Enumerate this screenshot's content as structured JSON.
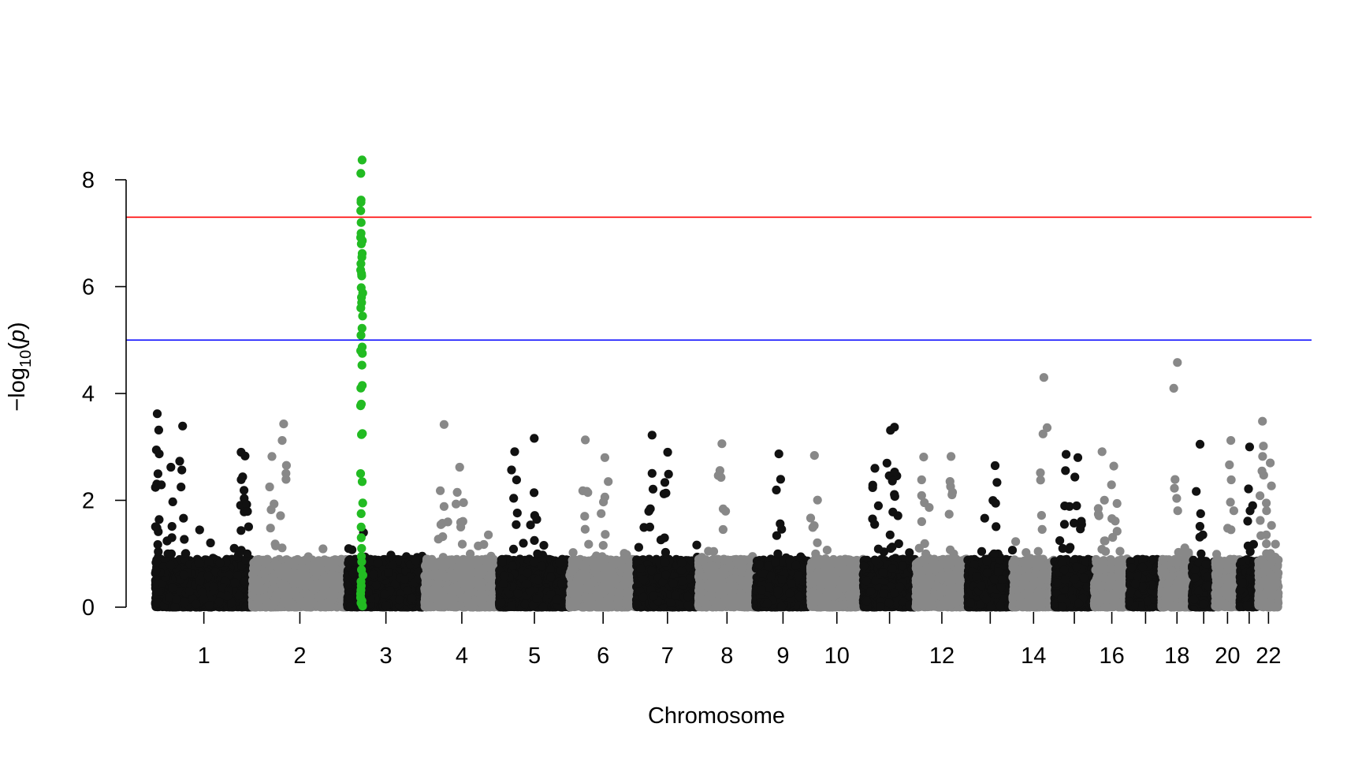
{
  "chart_data": {
    "type": "scatter",
    "subtype": "manhattan",
    "xlabel": "Chromosome",
    "ylabel_prefix": "−log",
    "ylabel_sub": "10",
    "ylabel_arg": "p",
    "ylim": [
      0,
      8.6
    ],
    "yticks": [
      "0",
      "2",
      "4",
      "6",
      "8"
    ],
    "colors": {
      "odd": "#111111",
      "even": "#888888",
      "highlight": "#22bb22"
    },
    "thresholds": [
      {
        "value": 7.3,
        "color": "#ff0000"
      },
      {
        "value": 5.0,
        "color": "#0000ff"
      }
    ],
    "chromosomes": [
      {
        "n": 1,
        "label": "1",
        "start": 0,
        "length": 249
      },
      {
        "n": 2,
        "label": "2",
        "start": 249,
        "length": 243
      },
      {
        "n": 3,
        "label": "3",
        "start": 492,
        "length": 198
      },
      {
        "n": 4,
        "label": "4",
        "start": 690,
        "length": 191
      },
      {
        "n": 5,
        "label": "5",
        "start": 881,
        "length": 181
      },
      {
        "n": 6,
        "label": "6",
        "start": 1062,
        "length": 171
      },
      {
        "n": 7,
        "label": "7",
        "start": 1233,
        "length": 159
      },
      {
        "n": 8,
        "label": "8",
        "start": 1392,
        "length": 146
      },
      {
        "n": 9,
        "label": "9",
        "start": 1538,
        "length": 141
      },
      {
        "n": 10,
        "label": "10",
        "start": 1679,
        "length": 135
      },
      {
        "n": 11,
        "label": "",
        "start": 1814,
        "length": 135
      },
      {
        "n": 12,
        "label": "12",
        "start": 1949,
        "length": 133
      },
      {
        "n": 13,
        "label": "",
        "start": 2082,
        "length": 115
      },
      {
        "n": 14,
        "label": "14",
        "start": 2197,
        "length": 107
      },
      {
        "n": 15,
        "label": "",
        "start": 2304,
        "length": 102
      },
      {
        "n": 16,
        "label": "16",
        "start": 2406,
        "length": 90
      },
      {
        "n": 17,
        "label": "",
        "start": 2496,
        "length": 83
      },
      {
        "n": 18,
        "label": "18",
        "start": 2579,
        "length": 78
      },
      {
        "n": 19,
        "label": "",
        "start": 2657,
        "length": 59
      },
      {
        "n": 20,
        "label": "20",
        "start": 2716,
        "length": 63
      },
      {
        "n": 21,
        "label": "",
        "start": 2779,
        "length": 48
      },
      {
        "n": 22,
        "label": "22",
        "start": 2827,
        "length": 51
      }
    ],
    "peaks": [
      {
        "chr": 1,
        "pos": 5,
        "y": 3.62
      },
      {
        "chr": 1,
        "pos": 10,
        "y": 2.87
      },
      {
        "chr": 1,
        "pos": 70,
        "y": 3.39
      },
      {
        "chr": 1,
        "pos": 40,
        "y": 2.62
      },
      {
        "chr": 1,
        "pos": 220,
        "y": 2.9
      },
      {
        "chr": 1,
        "pos": 230,
        "y": 2.83
      },
      {
        "chr": 2,
        "pos": 80,
        "y": 3.43
      },
      {
        "chr": 2,
        "pos": 50,
        "y": 2.82
      },
      {
        "chr": 4,
        "pos": 50,
        "y": 3.42
      },
      {
        "chr": 4,
        "pos": 90,
        "y": 2.62
      },
      {
        "chr": 5,
        "pos": 40,
        "y": 2.91
      },
      {
        "chr": 5,
        "pos": 90,
        "y": 3.16
      },
      {
        "chr": 6,
        "pos": 40,
        "y": 3.13
      },
      {
        "chr": 6,
        "pos": 90,
        "y": 2.8
      },
      {
        "chr": 7,
        "pos": 40,
        "y": 3.22
      },
      {
        "chr": 7,
        "pos": 80,
        "y": 2.9
      },
      {
        "chr": 8,
        "pos": 60,
        "y": 3.06
      },
      {
        "chr": 9,
        "pos": 60,
        "y": 2.87
      },
      {
        "chr": 10,
        "pos": 10,
        "y": 2.84
      },
      {
        "chr": 11,
        "pos": 70,
        "y": 3.31
      },
      {
        "chr": 11,
        "pos": 80,
        "y": 3.37
      },
      {
        "chr": 11,
        "pos": 30,
        "y": 2.6
      },
      {
        "chr": 12,
        "pos": 20,
        "y": 2.81
      },
      {
        "chr": 12,
        "pos": 90,
        "y": 2.82
      },
      {
        "chr": 13,
        "pos": 70,
        "y": 2.65
      },
      {
        "chr": 14,
        "pos": 80,
        "y": 4.3
      },
      {
        "chr": 15,
        "pos": 30,
        "y": 2.86
      },
      {
        "chr": 15,
        "pos": 60,
        "y": 2.8
      },
      {
        "chr": 16,
        "pos": 20,
        "y": 2.91
      },
      {
        "chr": 16,
        "pos": 50,
        "y": 2.64
      },
      {
        "chr": 18,
        "pos": 40,
        "y": 4.58
      },
      {
        "chr": 19,
        "pos": 20,
        "y": 3.05
      },
      {
        "chr": 20,
        "pos": 40,
        "y": 3.12
      },
      {
        "chr": 21,
        "pos": 25,
        "y": 3.0
      },
      {
        "chr": 22,
        "pos": 10,
        "y": 3.48
      },
      {
        "chr": 22,
        "pos": 30,
        "y": 2.7
      }
    ],
    "highlight_snps": {
      "chr": 3,
      "pos": 37,
      "values": [
        8.37,
        8.12,
        7.62,
        7.58,
        7.42,
        7.2,
        7.0,
        6.92,
        6.86,
        6.8,
        6.62,
        6.55,
        6.43,
        6.31,
        6.24,
        6.2,
        5.98,
        5.88,
        5.8,
        5.7,
        5.6,
        5.45,
        5.22,
        5.09,
        4.87,
        4.8,
        4.75,
        4.53,
        4.15,
        4.1,
        3.8,
        3.77,
        3.25,
        3.23,
        2.5,
        2.35,
        1.95,
        1.75,
        1.5,
        1.3,
        1.1,
        0.95,
        0.85,
        0.7,
        0.6,
        0.48,
        0.4,
        0.32,
        0.25,
        0.18,
        0.12,
        0.08,
        0.04,
        0.02
      ]
    }
  }
}
